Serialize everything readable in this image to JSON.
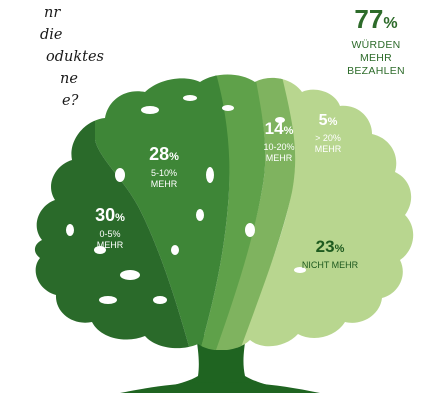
{
  "question": {
    "lines": [
      "nr",
      "die",
      "oduktes",
      "ne",
      "e?"
    ]
  },
  "total": {
    "value": "77",
    "unit": "%",
    "label_lines": [
      "WÜRDEN",
      "MEHR",
      "BEZAHLEN"
    ]
  },
  "colors": {
    "background": "#ffffff",
    "segment_30": "#2a6a2a",
    "segment_28": "#3e8637",
    "segment_14": "#5fa14a",
    "segment_5": "#7fb35f",
    "segment_23": "#b8d68f",
    "trunk": "#1f6421",
    "text_accent": "#2d6b2a"
  },
  "chart_data": {
    "type": "pie",
    "categories": [
      "0-5% MEHR",
      "5-10% MEHR",
      "10-20% MEHR",
      "> 20% MEHR",
      "NICHT MEHR"
    ],
    "values": [
      30,
      28,
      14,
      5,
      23
    ],
    "unit": "%",
    "segments": [
      {
        "value": "30",
        "unit": "%",
        "label_lines": [
          "0-5%",
          "MEHR"
        ]
      },
      {
        "value": "28",
        "unit": "%",
        "label_lines": [
          "5-10%",
          "MEHR"
        ]
      },
      {
        "value": "14",
        "unit": "%",
        "label_lines": [
          "10-20%",
          "MEHR"
        ]
      },
      {
        "value": "5",
        "unit": "%",
        "label_lines": [
          "> 20%",
          "MEHR"
        ]
      },
      {
        "value": "23",
        "unit": "%",
        "label_lines": [
          "NICHT MEHR"
        ]
      }
    ]
  }
}
